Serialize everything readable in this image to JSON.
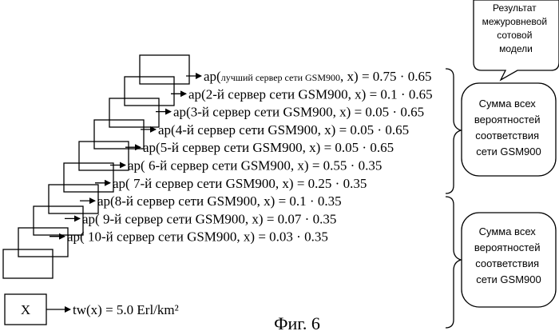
{
  "layers": [
    {
      "prefix": "ap(",
      "server": "лучший сервер сети GSM900",
      "suffix": ", x) = 0.75 · 0.65"
    },
    {
      "prefix": "ap(",
      "server": "2-й сервер сети GSM900",
      "suffix": ", x) = 0.1 · 0.65"
    },
    {
      "prefix": "ap(",
      "server": "3-й сервер сети GSM900",
      "suffix": ", x) = 0.05 · 0.65"
    },
    {
      "prefix": "ap(",
      "server": "4-й сервер сети GSM900",
      "suffix": ", x) = 0.05 · 0.65"
    },
    {
      "prefix": "ap(",
      "server": "5-й сервер сети GSM900",
      "suffix": ", x) = 0.05 · 0.65"
    },
    {
      "prefix": "ap(",
      "server": " 6-й сервер сети GSM900",
      "suffix": ", x) = 0.55 · 0.35"
    },
    {
      "prefix": "ap(",
      "server": " 7-й сервер сети GSM900",
      "suffix": ", x) = 0.25 · 0.35"
    },
    {
      "prefix": "ap(",
      "server": "8-й сервер сети GSM900",
      "suffix": ", x) = 0.1 · 0.35"
    },
    {
      "prefix": "ap(",
      "server": " 9-й сервер сети GSM900",
      "suffix": ", x) = 0.07 · 0.35"
    },
    {
      "prefix": "ap(",
      "server": " 10-й сервер сети GSM900",
      "suffix": ", x) = 0.03 · 0.35"
    }
  ],
  "result_callout": [
    "Результат",
    "межуровневой",
    "сотовой",
    "модели"
  ],
  "sum_box_1": [
    "Сумма всех",
    "вероятностей",
    "соответствия",
    "сети GSM900"
  ],
  "sum_box_2": [
    "Сумма всех",
    "вероятностей",
    "соответствия",
    "сети GSM900"
  ],
  "x_box": {
    "label": "X",
    "formula": "tw(x) = 5.0 Erl/km²"
  },
  "caption": "Фиг. 6"
}
